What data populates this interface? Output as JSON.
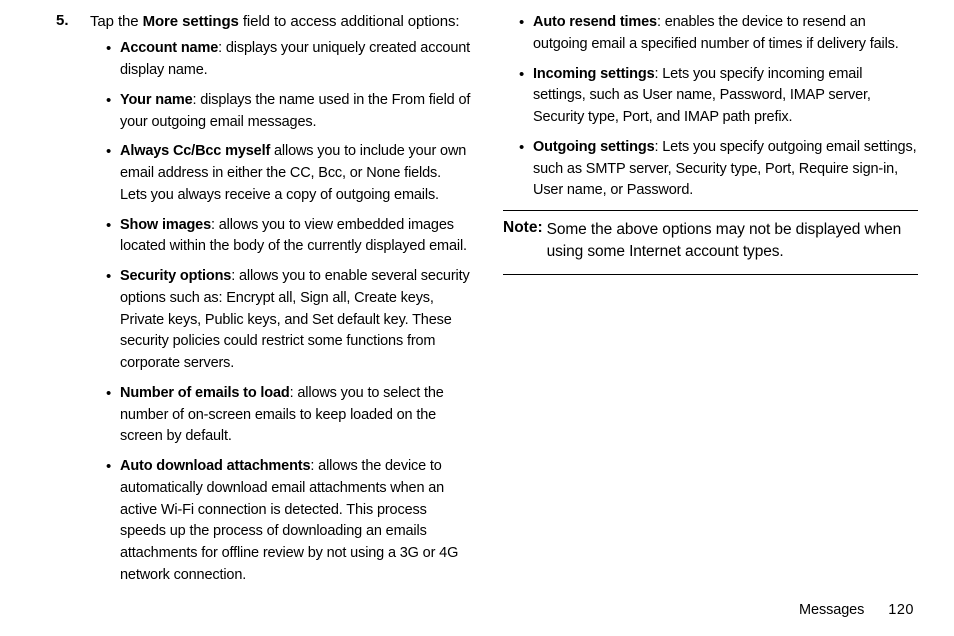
{
  "step": {
    "number": "5.",
    "pre": "Tap the ",
    "bold": "More settings",
    "post": " field to access additional options:"
  },
  "leftBullets": [
    {
      "bold": "Account name",
      "text": ": displays your uniquely created account display name."
    },
    {
      "bold": "Your name",
      "text": ": displays the name used in the From field of your outgoing email messages."
    },
    {
      "bold": "Always Cc/Bcc myself",
      "text": " allows you to include your own email address in either the CC, Bcc, or None fields. Lets you always receive a copy of outgoing emails."
    },
    {
      "bold": "Show images",
      "text": ": allows you to view embedded images located within the body of the currently displayed email."
    },
    {
      "bold": "Security options",
      "text": ": allows you to enable several security options such as: Encrypt all, Sign all, Create keys, Private keys, Public keys, and Set default key. These security policies could restrict some functions from corporate servers."
    },
    {
      "bold": "Number of emails to load",
      "text": ": allows you to select the number of on-screen emails to keep loaded on the screen by default."
    },
    {
      "bold": "Auto download attachments",
      "text": ": allows the device to automatically download email attachments when an active Wi-Fi connection is detected. This process speeds up the process of downloading an emails attachments for offline review by not using a 3G or 4G network connection."
    }
  ],
  "rightBullets": [
    {
      "bold": "Auto resend times",
      "text": ": enables the device to resend an outgoing email a specified number of times if delivery fails."
    },
    {
      "bold": "Incoming settings",
      "text": ": Lets you specify incoming email settings, such as User name, Password, IMAP server, Security type, Port, and IMAP path prefix."
    },
    {
      "bold": "Outgoing settings",
      "text": ": Lets you specify outgoing email settings, such as SMTP server, Security type, Port, Require sign-in, User name, or Password."
    }
  ],
  "note": {
    "label": "Note: ",
    "text": "Some the above options may not be displayed when using some Internet account types."
  },
  "footer": {
    "section": "Messages",
    "page": "120"
  },
  "colors": {
    "text": "#000000",
    "bg": "#ffffff",
    "rule": "#000000"
  },
  "fonts": {
    "body_pt": 15,
    "bullet_pt": 14.5,
    "note_pt": 15.5
  }
}
